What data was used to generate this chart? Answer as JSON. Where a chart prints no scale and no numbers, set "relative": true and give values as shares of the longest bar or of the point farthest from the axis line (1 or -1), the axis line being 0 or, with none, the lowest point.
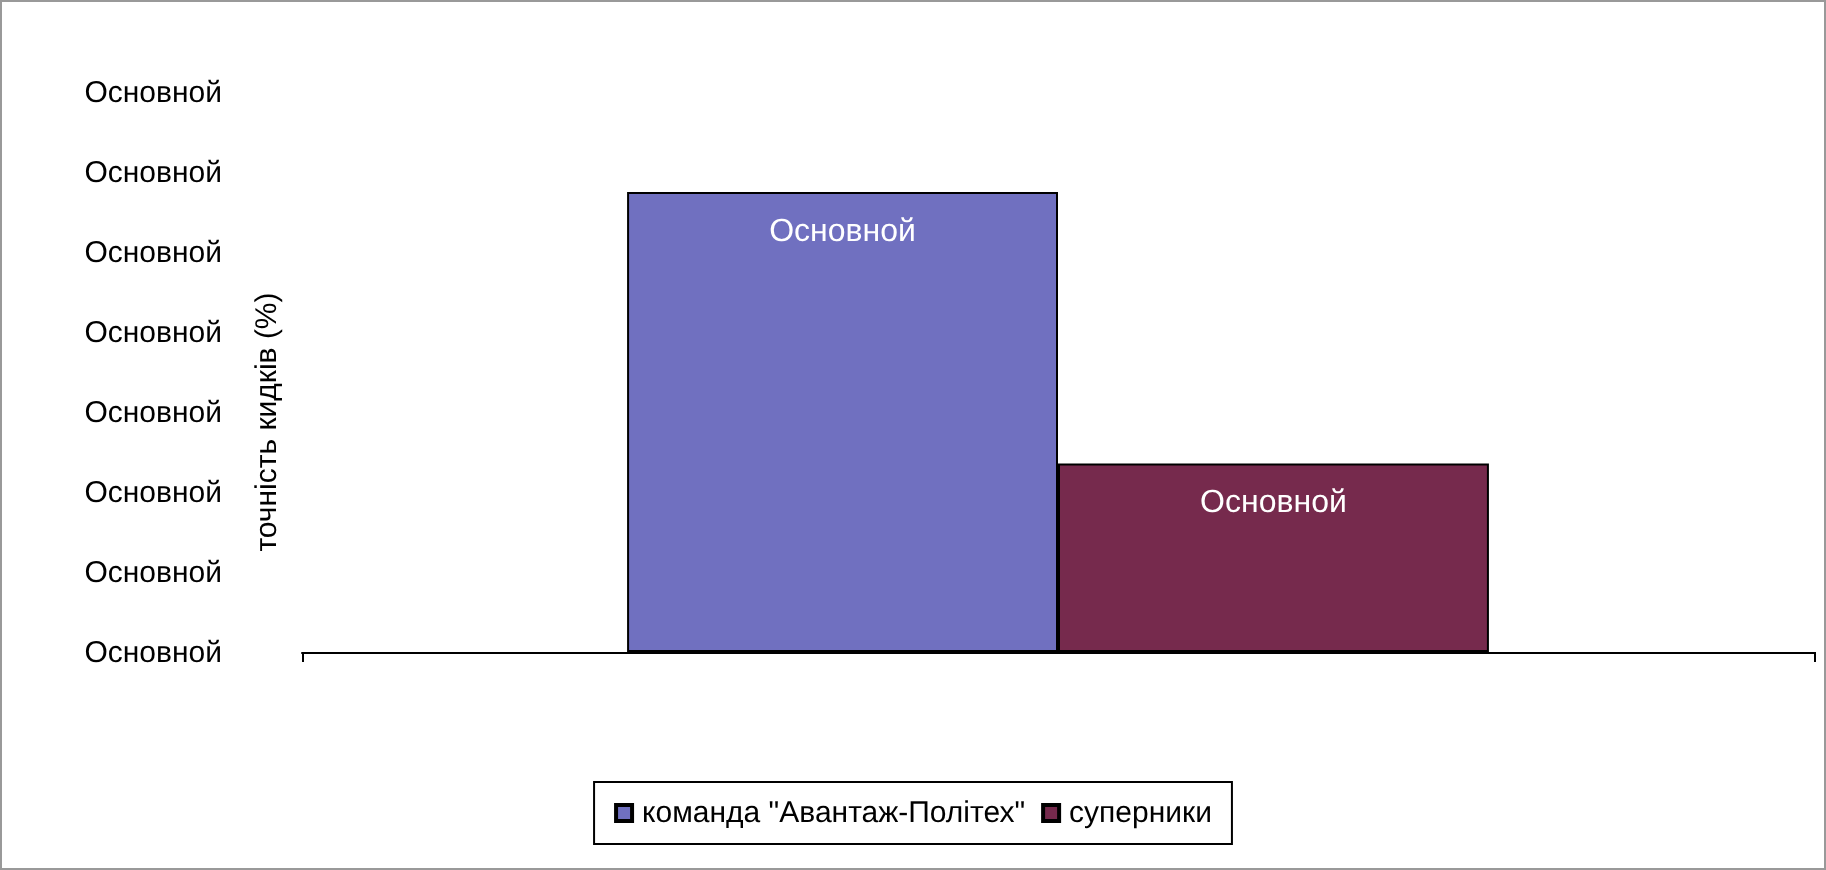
{
  "chart_data": {
    "type": "bar",
    "ylabel": "точність кидків (%)",
    "categories": [
      null
    ],
    "relative": true,
    "series": [
      {
        "name": "команда \"Авантаж-Політех\"",
        "color": "#7070c0",
        "values": [
          1
        ]
      },
      {
        "name": "суперники",
        "color": "#762a4d",
        "values": [
          0.41
        ]
      }
    ],
    "annotations": [
      "Основной",
      "Основной",
      "Основной",
      "Основной",
      "Основной",
      "Основной",
      "Основной",
      "Основной",
      "Основной",
      "Основной"
    ],
    "legend": "bottom"
  }
}
